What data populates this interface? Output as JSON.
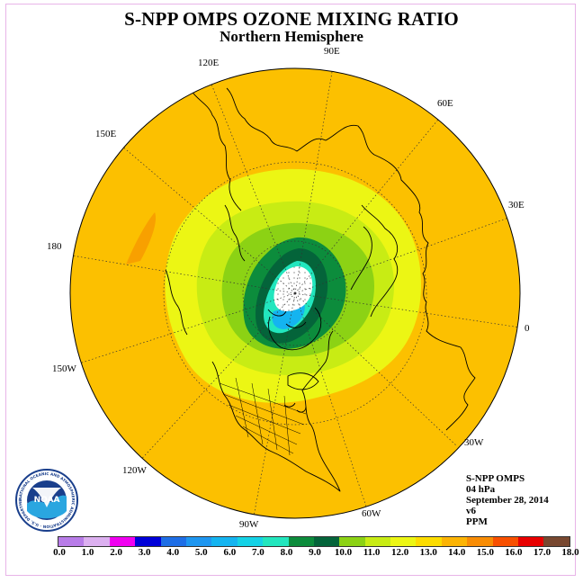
{
  "title": "S-NPP OMPS OZONE MIXING RATIO",
  "subtitle": "Northern Hemisphere",
  "longitude_labels": [
    {
      "text": "90E",
      "key": "90e"
    },
    {
      "text": "60E",
      "key": "60e"
    },
    {
      "text": "30E",
      "key": "30e"
    },
    {
      "text": "0",
      "key": "0"
    },
    {
      "text": "30W",
      "key": "30w"
    },
    {
      "text": "60W",
      "key": "60w"
    },
    {
      "text": "90W",
      "key": "90w"
    },
    {
      "text": "120W",
      "key": "120w"
    },
    {
      "text": "150W",
      "key": "150w"
    },
    {
      "text": "180",
      "key": "180"
    },
    {
      "text": "150E",
      "key": "150e"
    },
    {
      "text": "120E",
      "key": "120e"
    }
  ],
  "info": {
    "instrument": "S-NPP OMPS",
    "pressure": "04 hPa",
    "date": "September 28, 2014",
    "version": "v6",
    "units": "PPM"
  },
  "logo": {
    "text": "NOAA",
    "ring_text": "NATIONAL OCEANIC AND ATMOSPHERIC ADMINISTRATION · U.S. DEPARTMENT OF COMMERCE"
  },
  "colorbar": {
    "ticks": [
      "0.0",
      "1.0",
      "2.0",
      "3.0",
      "4.0",
      "5.0",
      "6.0",
      "7.0",
      "8.0",
      "9.0",
      "10.0",
      "11.0",
      "12.0",
      "13.0",
      "14.0",
      "15.0",
      "16.0",
      "17.0",
      "18.0"
    ],
    "colors": [
      "#b87ce8",
      "#dcb0f0",
      "#f000f0",
      "#0000d8",
      "#1e6ee6",
      "#1e96f0",
      "#14b4f0",
      "#14d2e6",
      "#22e6be",
      "#0c8c3c",
      "#04643a",
      "#8cd214",
      "#c8ec14",
      "#ecf614",
      "#fcdc00",
      "#fcb404",
      "#f88c04",
      "#f85000",
      "#e80000",
      "#784830"
    ]
  },
  "field_colors": {
    "background_level": "#fcc000",
    "high_lobe": "#f8a000",
    "level_12_13": "#ecf614",
    "level_11_12": "#c8ec14",
    "level_10_11": "#8cd214",
    "level_9_10": "#0c8c3c",
    "level_8_9": "#04643a",
    "level_7_8": "#22e6be",
    "polar_night": "#ffffff"
  }
}
